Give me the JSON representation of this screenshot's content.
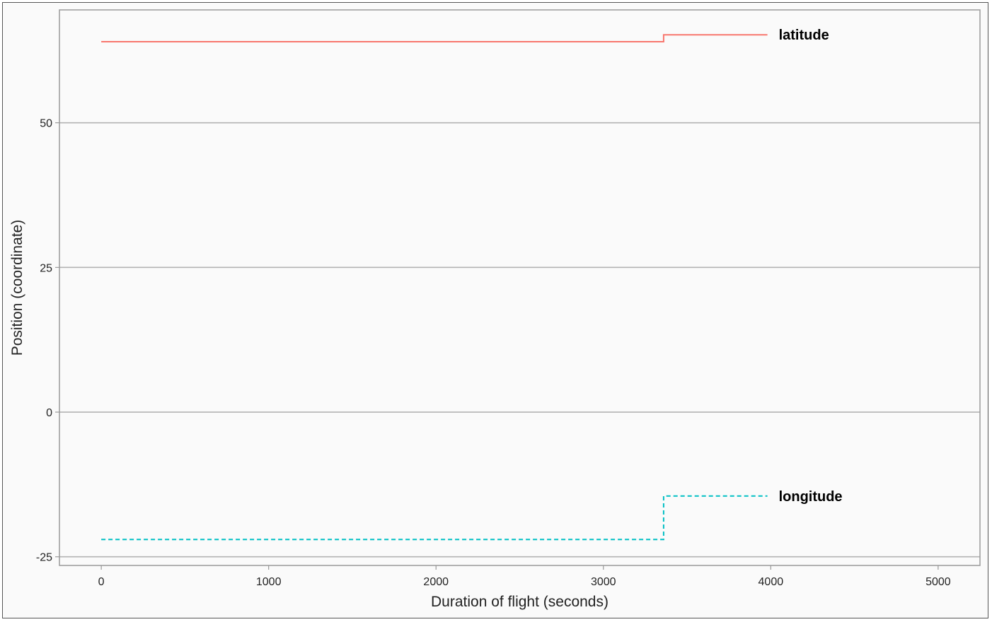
{
  "chart_data": {
    "type": "line",
    "title": "",
    "xlabel": "Duration of flight (seconds)",
    "ylabel": "Position (coordinate)",
    "xlim": [
      -250,
      5250
    ],
    "ylim": [
      -26.5,
      69.5
    ],
    "x_ticks": [
      {
        "value": 0,
        "label": "0"
      },
      {
        "value": 1000,
        "label": "1000"
      },
      {
        "value": 2000,
        "label": "2000"
      },
      {
        "value": 3000,
        "label": "3000"
      },
      {
        "value": 4000,
        "label": "4000"
      },
      {
        "value": 5000,
        "label": "5000"
      }
    ],
    "y_ticks": [
      {
        "value": -25,
        "label": "-25"
      },
      {
        "value": 0,
        "label": "0"
      },
      {
        "value": 25,
        "label": "25"
      },
      {
        "value": 50,
        "label": "50"
      }
    ],
    "grid": {
      "horizontal": true,
      "vertical": false
    },
    "legend": "direct labels at line ends (right)",
    "series": [
      {
        "name": "latitude",
        "color": "#F8766D",
        "line_style": "solid",
        "step": true,
        "x": [
          0,
          3360,
          3360,
          3980
        ],
        "y": [
          64.0,
          64.0,
          65.2,
          65.2
        ]
      },
      {
        "name": "longitude",
        "color": "#00BFC4",
        "line_style": "dashed",
        "step": true,
        "x": [
          0,
          3360,
          3360,
          3980
        ],
        "y": [
          -22.0,
          -22.0,
          -14.5,
          -14.5
        ]
      }
    ]
  }
}
